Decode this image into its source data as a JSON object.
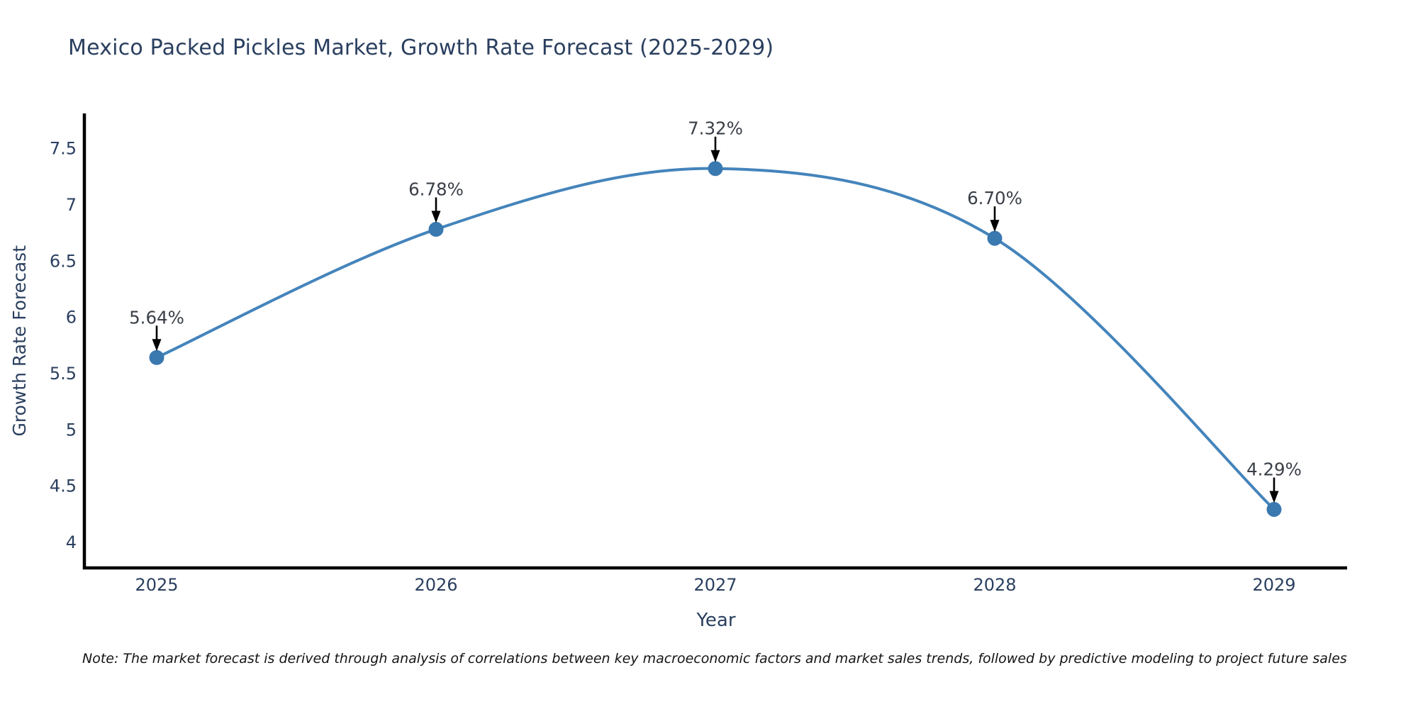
{
  "page": {
    "note": "Note: The market forecast is derived through analysis of correlations between key macroeconomic factors and market sales trends, followed by predictive modeling to project future sales"
  },
  "chart_data": {
    "type": "line",
    "title": "Mexico Packed Pickles Market, Growth Rate Forecast (2025-2029)",
    "xlabel": "Year",
    "ylabel": "Growth Rate Forecast",
    "categories": [
      "2025",
      "2026",
      "2027",
      "2028",
      "2029"
    ],
    "values": [
      5.64,
      6.78,
      7.32,
      6.7,
      4.29
    ],
    "point_labels": [
      "5.64%",
      "6.78%",
      "7.32%",
      "6.70%",
      "4.29%"
    ],
    "yticks": [
      4,
      4.5,
      5,
      5.5,
      6,
      6.5,
      7,
      7.5
    ],
    "ylim": [
      3.77,
      7.81
    ],
    "grid": false,
    "legend": "none",
    "line_color": "#4484bb",
    "marker_color": "#3a78b0",
    "arrow_color": "#000000",
    "spine_color": "#000000",
    "text_color": "#2a3f5f",
    "annotation_text_color": "#3a3f47"
  }
}
